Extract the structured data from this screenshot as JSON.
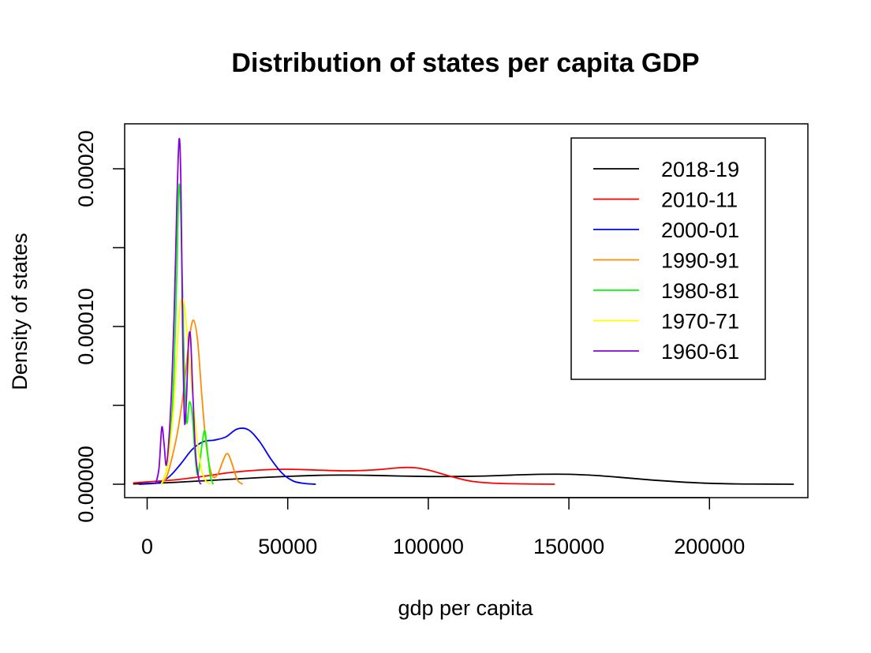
{
  "chart_data": {
    "type": "line",
    "title": "Distribution of states per capita GDP",
    "xlabel": "gdp per capita",
    "ylabel": "Density of states",
    "xlim": [
      -8000,
      235000
    ],
    "ylim": [
      -8.5e-06,
      0.0002285
    ],
    "x_ticks": [
      0,
      50000,
      100000,
      150000,
      200000
    ],
    "x_tick_labels": [
      "0",
      "50000",
      "100000",
      "150000",
      "200000"
    ],
    "y_ticks": [
      0,
      5e-05,
      0.0001,
      0.00015,
      0.0002
    ],
    "y_tick_labels": [
      "0.00000",
      "0.00010",
      "0.00020"
    ],
    "y_labeled_ticks": [
      0,
      0.0001,
      0.0002
    ],
    "grid": false,
    "legend_position": "top-right",
    "series": [
      {
        "name": "2018-19",
        "color": "#000000",
        "x": [
          -5000,
          0,
          10000,
          20000,
          30000,
          40000,
          50000,
          60000,
          70000,
          80000,
          90000,
          100000,
          110000,
          120000,
          130000,
          140000,
          150000,
          160000,
          170000,
          180000,
          190000,
          200000,
          210000,
          220000,
          230000
        ],
        "y": [
          2e-07,
          5e-07,
          1.2e-06,
          2.2e-06,
          3.2e-06,
          4.2e-06,
          5e-06,
          5.6e-06,
          5.8e-06,
          5.6e-06,
          5.2e-06,
          4.9e-06,
          4.9e-06,
          5.2e-06,
          5.8e-06,
          6.3e-06,
          6.3e-06,
          5.5e-06,
          4.1e-06,
          2.6e-06,
          1.4e-06,
          6e-07,
          2e-07,
          1e-07,
          0.0
        ]
      },
      {
        "name": "2010-11",
        "color": "#ff0000",
        "x": [
          -5000,
          0,
          10000,
          20000,
          30000,
          40000,
          50000,
          60000,
          70000,
          80000,
          90000,
          95000,
          100000,
          105000,
          110000,
          115000,
          120000,
          130000,
          145000
        ],
        "y": [
          8e-07,
          1.5e-06,
          2.8e-06,
          5e-06,
          7.5e-06,
          9e-06,
          9.5e-06,
          9e-06,
          8.5e-06,
          9e-06,
          1.05e-05,
          1.05e-05,
          9e-06,
          6.5e-06,
          4e-06,
          2e-06,
          1e-06,
          3e-07,
          0.0
        ]
      },
      {
        "name": "2000-01",
        "color": "#0000ff",
        "x": [
          -3000,
          4000,
          8000,
          12000,
          16000,
          20000,
          24000,
          28000,
          32000,
          36000,
          40000,
          44000,
          48000,
          52000,
          56000,
          60000
        ],
        "y": [
          0.0,
          1e-06,
          5e-06,
          1.3e-05,
          2.2e-05,
          2.7e-05,
          2.8e-05,
          3e-05,
          3.5e-05,
          3.45e-05,
          2.7e-05,
          1.6e-05,
          7e-06,
          2e-06,
          5e-07,
          0.0
        ]
      },
      {
        "name": "1990-91",
        "color": "#ff8c00",
        "x": [
          5000,
          7000,
          9000,
          11000,
          13000,
          15000,
          16500,
          18000,
          19500,
          21000,
          23000,
          25000,
          27000,
          28500,
          30000,
          32000,
          34000
        ],
        "y": [
          0.0,
          5e-06,
          1.8e-05,
          3.5e-05,
          6e-05,
          9.2e-05,
          0.000104,
          9e-05,
          5.5e-05,
          2.5e-05,
          6e-06,
          6e-06,
          1.5e-05,
          1.95e-05,
          1.4e-05,
          3e-06,
          0.0
        ]
      },
      {
        "name": "1980-81",
        "color": "#00ff00",
        "x": [
          5000,
          7000,
          8500,
          9500,
          10500,
          11300,
          12000,
          13000,
          14000,
          15000,
          16000,
          17000,
          18000,
          19500,
          20500,
          21500,
          22500,
          23500
        ],
        "y": [
          0.0,
          1e-05,
          3.5e-05,
          7e-05,
          0.00013,
          0.000188,
          0.00017,
          9e-05,
          4e-05,
          5.2e-05,
          4.5e-05,
          2e-05,
          6e-06,
          2.5e-05,
          3.4e-05,
          2e-05,
          5e-06,
          0.0
        ]
      },
      {
        "name": "1970-71",
        "color": "#ffff00",
        "x": [
          5000,
          7000,
          9000,
          10500,
          11500,
          12500,
          13500,
          14500,
          15500,
          16500,
          17500,
          18500,
          19500,
          20500,
          21500,
          22500
        ],
        "y": [
          0.0,
          1e-05,
          4e-05,
          8e-05,
          0.00011,
          0.000118,
          0.00011,
          9e-05,
          7e-05,
          5e-05,
          3.2e-05,
          1.8e-05,
          8e-06,
          3e-06,
          1e-06,
          0.0
        ]
      },
      {
        "name": "1960-61",
        "color": "#8800dd",
        "x": [
          3000,
          4200,
          5200,
          6000,
          6800,
          7800,
          8800,
          9800,
          10600,
          11400,
          12000,
          12600,
          13300,
          14000,
          14700,
          15400,
          16200,
          17200,
          18400,
          19200
        ],
        "y": [
          0.0,
          1e-05,
          3.6e-05,
          2.6e-05,
          1.2e-05,
          3e-05,
          6.5e-05,
          0.00012,
          0.00018,
          0.000219,
          0.00019,
          0.0001,
          4e-05,
          5.5e-05,
          9e-05,
          9.4e-05,
          6e-05,
          2e-05,
          3e-06,
          0.0
        ]
      }
    ]
  }
}
